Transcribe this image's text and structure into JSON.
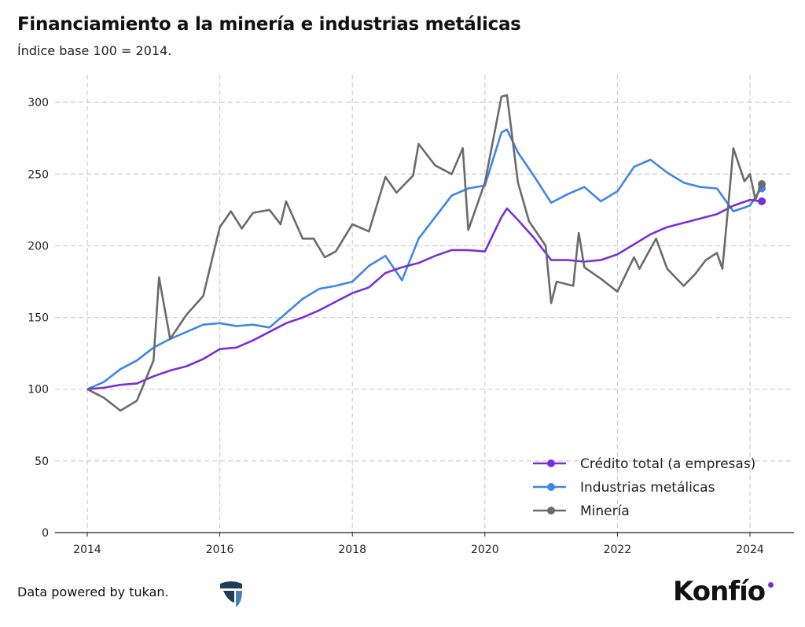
{
  "chart_data": {
    "type": "line",
    "title": "Financiamiento a la minería e industrias metálicas",
    "subtitle": "Índice base 100 = 2014.",
    "xlabel": "",
    "ylabel": "",
    "xlim": [
      "2013-09",
      "2024-08"
    ],
    "ylim": [
      0,
      320
    ],
    "x_ticks": [
      "2014",
      "2016",
      "2018",
      "2020",
      "2022",
      "2024"
    ],
    "y_ticks": [
      "0",
      "50",
      "100",
      "150",
      "200",
      "250",
      "300"
    ],
    "grid": true,
    "legend_position": "bottom-right",
    "series": [
      {
        "name": "Crédito total (a empresas)",
        "color": "#7b2fd8",
        "x": [
          "2014-01",
          "2014-04",
          "2014-07",
          "2014-10",
          "2015-01",
          "2015-04",
          "2015-07",
          "2015-10",
          "2016-01",
          "2016-04",
          "2016-07",
          "2016-10",
          "2017-01",
          "2017-04",
          "2017-07",
          "2017-10",
          "2018-01",
          "2018-04",
          "2018-07",
          "2018-10",
          "2019-01",
          "2019-04",
          "2019-07",
          "2019-10",
          "2020-01",
          "2020-04",
          "2020-05",
          "2020-07",
          "2020-10",
          "2021-01",
          "2021-04",
          "2021-07",
          "2021-10",
          "2022-01",
          "2022-04",
          "2022-07",
          "2022-10",
          "2023-01",
          "2023-04",
          "2023-07",
          "2023-10",
          "2024-01",
          "2024-03"
        ],
        "y": [
          100,
          101,
          103,
          104,
          109,
          113,
          116,
          121,
          128,
          129,
          134,
          140,
          146,
          150,
          155,
          161,
          167,
          171,
          181,
          185,
          188,
          193,
          197,
          197,
          196,
          220,
          226,
          218,
          205,
          190,
          190,
          189,
          190,
          194,
          201,
          208,
          213,
          216,
          219,
          222,
          228,
          232,
          231
        ]
      },
      {
        "name": "Industrias metálicas",
        "color": "#3f86e8",
        "x": [
          "2014-01",
          "2014-04",
          "2014-07",
          "2014-10",
          "2015-01",
          "2015-04",
          "2015-07",
          "2015-10",
          "2016-01",
          "2016-04",
          "2016-07",
          "2016-10",
          "2017-01",
          "2017-04",
          "2017-07",
          "2017-10",
          "2018-01",
          "2018-04",
          "2018-07",
          "2018-10",
          "2019-01",
          "2019-04",
          "2019-07",
          "2019-10",
          "2020-01",
          "2020-04",
          "2020-05",
          "2020-07",
          "2020-10",
          "2021-01",
          "2021-04",
          "2021-07",
          "2021-10",
          "2022-01",
          "2022-04",
          "2022-07",
          "2022-10",
          "2023-01",
          "2023-04",
          "2023-07",
          "2023-10",
          "2024-01",
          "2024-03"
        ],
        "y": [
          100,
          105,
          114,
          120,
          129,
          135,
          140,
          145,
          146,
          144,
          145,
          143,
          153,
          163,
          170,
          172,
          175,
          186,
          193,
          176,
          205,
          220,
          235,
          240,
          242,
          279,
          281,
          265,
          248,
          230,
          236,
          241,
          231,
          238,
          255,
          260,
          251,
          244,
          241,
          240,
          224,
          228,
          240
        ]
      },
      {
        "name": "Minería",
        "color": "#6b6b6b",
        "x": [
          "2014-01",
          "2014-04",
          "2014-07",
          "2014-10",
          "2015-01",
          "2015-02",
          "2015-04",
          "2015-07",
          "2015-10",
          "2016-01",
          "2016-03",
          "2016-05",
          "2016-07",
          "2016-10",
          "2016-12",
          "2017-01",
          "2017-04",
          "2017-06",
          "2017-08",
          "2017-10",
          "2018-01",
          "2018-04",
          "2018-07",
          "2018-09",
          "2018-12",
          "2019-01",
          "2019-04",
          "2019-07",
          "2019-09",
          "2019-10",
          "2020-01",
          "2020-04",
          "2020-05",
          "2020-07",
          "2020-09",
          "2020-12",
          "2021-01",
          "2021-02",
          "2021-05",
          "2021-06",
          "2021-07",
          "2021-10",
          "2022-01",
          "2022-04",
          "2022-05",
          "2022-07",
          "2022-08",
          "2022-10",
          "2023-01",
          "2023-03",
          "2023-05",
          "2023-07",
          "2023-08",
          "2023-09",
          "2023-10",
          "2023-12",
          "2024-01",
          "2024-02",
          "2024-03"
        ],
        "y": [
          100,
          94,
          85,
          92,
          120,
          178,
          135,
          152,
          165,
          213,
          224,
          212,
          223,
          225,
          215,
          231,
          205,
          205,
          192,
          196,
          215,
          210,
          248,
          237,
          249,
          271,
          256,
          250,
          268,
          211,
          244,
          304,
          305,
          244,
          217,
          200,
          160,
          175,
          172,
          209,
          185,
          177,
          168,
          192,
          184,
          198,
          205,
          184,
          172,
          180,
          190,
          195,
          184,
          225,
          268,
          245,
          250,
          232,
          243
        ]
      }
    ]
  },
  "footer": {
    "source": "Data powered by tukan.",
    "tukan_logo": "tukan",
    "brand_logo": "Konfío"
  }
}
